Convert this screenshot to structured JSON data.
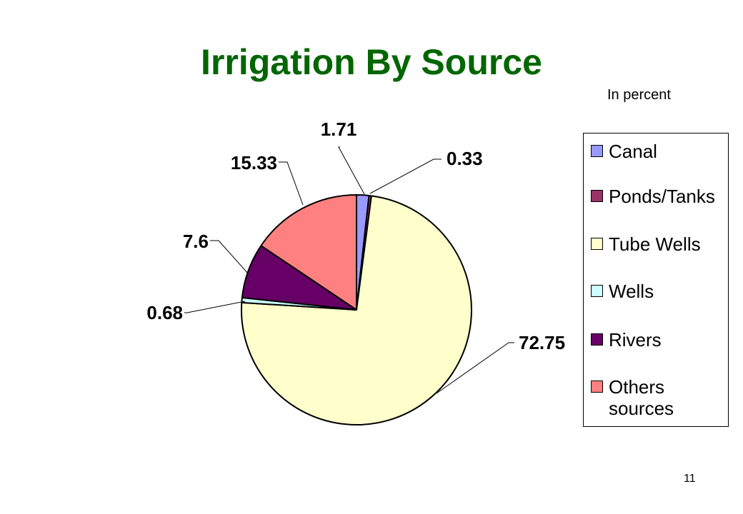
{
  "chart_data": {
    "type": "pie",
    "title": "Irrigation By Source",
    "subtitle": "In percent",
    "start_angle_deg": 0,
    "direction": "clockwise",
    "categories": [
      "Canal",
      "Ponds/Tanks",
      "Tube Wells",
      "Wells",
      "Rivers",
      "Others sources"
    ],
    "values": [
      1.71,
      0.33,
      72.75,
      0.68,
      7.6,
      15.33
    ],
    "data_labels": [
      "1.71",
      "0.33",
      "72.75",
      "0.68",
      "7.6",
      "15.33"
    ],
    "colors": [
      "#9999FF",
      "#993366",
      "#FFFFCC",
      "#CCFFFF",
      "#660066",
      "#FF8080"
    ],
    "legend": {
      "placement": "right",
      "items": [
        {
          "label": "Canal",
          "color": "#9999FF"
        },
        {
          "label": "Ponds/Tanks",
          "color": "#993366"
        },
        {
          "label": "Tube Wells",
          "color": "#FFFFCC"
        },
        {
          "label": "Wells",
          "color": "#CCFFFF"
        },
        {
          "label": "Rivers",
          "color": "#660066"
        },
        {
          "label": "Others\nsources",
          "color": "#FF8080"
        }
      ]
    }
  },
  "page_number": "11",
  "colors": {
    "title": "#006600"
  }
}
